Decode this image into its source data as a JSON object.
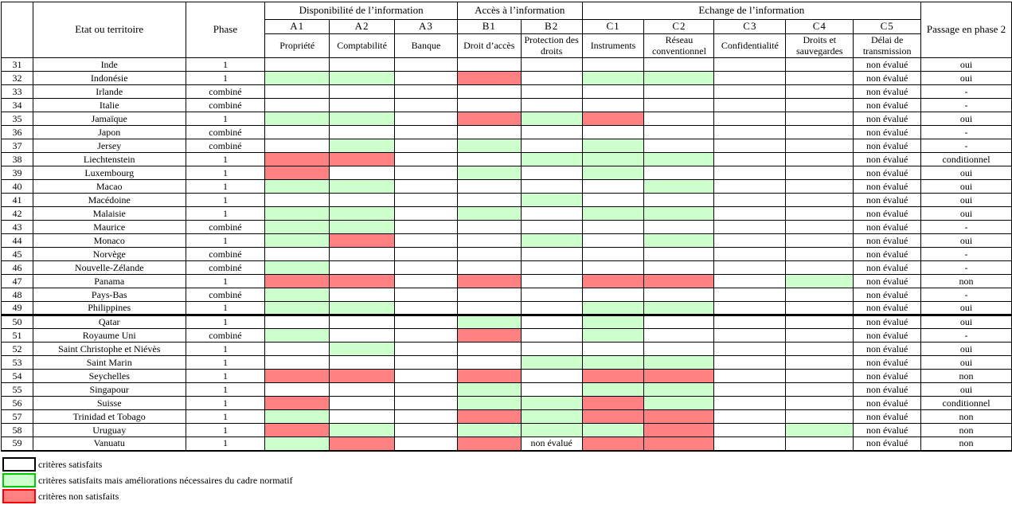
{
  "colors": {
    "criteria_ok_fill": "#ffffff",
    "criteria_improve_fill": "#ccffcc",
    "criteria_fail_fill": "#ff8080",
    "legend_green_border": "#00cc00",
    "legend_red_border": "#ff0000",
    "grid": "#000000"
  },
  "header": {
    "number": "",
    "territory": "Etat ou territoire",
    "phase": "Phase",
    "passage": "Passage en phase 2",
    "groups": [
      {
        "label": "Disponibilité de l’information",
        "cols": [
          "A1",
          "A2",
          "A3"
        ],
        "subs": [
          "Propriété",
          "Comptabilité",
          "Banque"
        ]
      },
      {
        "label": "Accès à l’information",
        "cols": [
          "B1",
          "B2"
        ],
        "subs": [
          "Droit d’accès",
          "Protection des droits"
        ]
      },
      {
        "label": "Echange de l’information",
        "cols": [
          "C1",
          "C2",
          "C3",
          "C4",
          "C5"
        ],
        "subs": [
          "Instruments",
          "Réseau conventionnel",
          "Confidentialité",
          "Droits et sauvegardes",
          "Délai de transmission"
        ]
      }
    ]
  },
  "cell_columns": [
    "A1",
    "A2",
    "A3",
    "B1",
    "B2",
    "C1",
    "C2",
    "C3",
    "C4"
  ],
  "not_evaluated_label": "non évalué",
  "rows": [
    {
      "num": "31",
      "territory": "Inde",
      "phase": "1",
      "cells": [
        "W",
        "W",
        "W",
        "W",
        "W",
        "W",
        "W",
        "W",
        "W"
      ],
      "c5": "non évalué",
      "passage": "oui",
      "thick_bottom": false
    },
    {
      "num": "32",
      "territory": "Indonésie",
      "phase": "1",
      "cells": [
        "G",
        "G",
        "W",
        "R",
        "W",
        "G",
        "G",
        "W",
        "W"
      ],
      "c5": "non évalué",
      "passage": "oui",
      "thick_bottom": false
    },
    {
      "num": "33",
      "territory": "Irlande",
      "phase": "combiné",
      "cells": [
        "W",
        "W",
        "W",
        "W",
        "W",
        "W",
        "W",
        "W",
        "W"
      ],
      "c5": "non évalué",
      "passage": "-",
      "thick_bottom": false
    },
    {
      "num": "34",
      "territory": "Italie",
      "phase": "combiné",
      "cells": [
        "W",
        "W",
        "W",
        "W",
        "W",
        "W",
        "W",
        "W",
        "W"
      ],
      "c5": "non évalué",
      "passage": "-",
      "thick_bottom": false
    },
    {
      "num": "35",
      "territory": "Jamaïque",
      "phase": "1",
      "cells": [
        "G",
        "G",
        "W",
        "R",
        "G",
        "R",
        "W",
        "W",
        "W"
      ],
      "c5": "non évalué",
      "passage": "oui",
      "thick_bottom": false
    },
    {
      "num": "36",
      "territory": "Japon",
      "phase": "combiné",
      "cells": [
        "W",
        "W",
        "W",
        "W",
        "W",
        "W",
        "W",
        "W",
        "W"
      ],
      "c5": "non évalué",
      "passage": "-",
      "thick_bottom": false
    },
    {
      "num": "37",
      "territory": "Jersey",
      "phase": "combiné",
      "cells": [
        "W",
        "G",
        "W",
        "G",
        "W",
        "G",
        "W",
        "W",
        "W"
      ],
      "c5": "non évalué",
      "passage": "-",
      "thick_bottom": false
    },
    {
      "num": "38",
      "territory": "Liechtenstein",
      "phase": "1",
      "cells": [
        "R",
        "R",
        "W",
        "W",
        "G",
        "G",
        "G",
        "W",
        "W"
      ],
      "c5": "non évalué",
      "passage": "conditionnel",
      "thick_bottom": false
    },
    {
      "num": "39",
      "territory": "Luxembourg",
      "phase": "1",
      "cells": [
        "R",
        "W",
        "W",
        "G",
        "W",
        "G",
        "W",
        "W",
        "W"
      ],
      "c5": "non évalué",
      "passage": "oui",
      "thick_bottom": false
    },
    {
      "num": "40",
      "territory": "Macao",
      "phase": "1",
      "cells": [
        "G",
        "G",
        "W",
        "W",
        "W",
        "W",
        "G",
        "W",
        "W"
      ],
      "c5": "non évalué",
      "passage": "oui",
      "thick_bottom": false
    },
    {
      "num": "41",
      "territory": "Macédoine",
      "phase": "1",
      "cells": [
        "W",
        "W",
        "W",
        "W",
        "G",
        "W",
        "W",
        "W",
        "W"
      ],
      "c5": "non évalué",
      "passage": "oui",
      "thick_bottom": false
    },
    {
      "num": "42",
      "territory": "Malaisie",
      "phase": "1",
      "cells": [
        "G",
        "G",
        "W",
        "G",
        "W",
        "G",
        "G",
        "W",
        "W"
      ],
      "c5": "non évalué",
      "passage": "oui",
      "thick_bottom": false
    },
    {
      "num": "43",
      "territory": "Maurice",
      "phase": "combiné",
      "cells": [
        "G",
        "G",
        "W",
        "W",
        "W",
        "W",
        "W",
        "W",
        "W"
      ],
      "c5": "non évalué",
      "passage": "-",
      "thick_bottom": false
    },
    {
      "num": "44",
      "territory": "Monaco",
      "phase": "1",
      "cells": [
        "G",
        "R",
        "W",
        "W",
        "G",
        "W",
        "G",
        "W",
        "W"
      ],
      "c5": "non évalué",
      "passage": "oui",
      "thick_bottom": false
    },
    {
      "num": "45",
      "territory": "Norvège",
      "phase": "combiné",
      "cells": [
        "W",
        "W",
        "W",
        "W",
        "W",
        "W",
        "W",
        "W",
        "W"
      ],
      "c5": "non évalué",
      "passage": "-",
      "thick_bottom": false
    },
    {
      "num": "46",
      "territory": "Nouvelle-Zélande",
      "phase": "combiné",
      "cells": [
        "G",
        "W",
        "W",
        "W",
        "W",
        "W",
        "W",
        "W",
        "W"
      ],
      "c5": "non évalué",
      "passage": "-",
      "thick_bottom": false
    },
    {
      "num": "47",
      "territory": "Panama",
      "phase": "1",
      "cells": [
        "R",
        "R",
        "W",
        "R",
        "W",
        "R",
        "R",
        "W",
        "G"
      ],
      "c5": "non évalué",
      "passage": "non",
      "thick_bottom": false
    },
    {
      "num": "48",
      "territory": "Pays-Bas",
      "phase": "combiné",
      "cells": [
        "G",
        "W",
        "W",
        "W",
        "W",
        "W",
        "W",
        "W",
        "W"
      ],
      "c5": "non évalué",
      "passage": "-",
      "thick_bottom": false
    },
    {
      "num": "49",
      "territory": "Philippines",
      "phase": "1",
      "cells": [
        "G",
        "G",
        "W",
        "W",
        "W",
        "G",
        "G",
        "W",
        "W"
      ],
      "c5": "non évalué",
      "passage": "oui",
      "thick_bottom": true
    },
    {
      "num": "50",
      "territory": "Qatar",
      "phase": "1",
      "cells": [
        "W",
        "W",
        "W",
        "G",
        "W",
        "G",
        "W",
        "W",
        "W"
      ],
      "c5": "non évalué",
      "passage": "oui",
      "thick_bottom": false
    },
    {
      "num": "51",
      "territory": "Royaume Uni",
      "phase": "combiné",
      "cells": [
        "G",
        "W",
        "W",
        "R",
        "W",
        "G",
        "W",
        "W",
        "W"
      ],
      "c5": "non évalué",
      "passage": "-",
      "thick_bottom": false
    },
    {
      "num": "52",
      "territory": "Saint Christophe et Niévès",
      "phase": "1",
      "cells": [
        "W",
        "G",
        "W",
        "W",
        "W",
        "W",
        "W",
        "W",
        "W"
      ],
      "c5": "non évalué",
      "passage": "oui",
      "thick_bottom": false
    },
    {
      "num": "53",
      "territory": "Saint Marin",
      "phase": "1",
      "cells": [
        "W",
        "W",
        "W",
        "W",
        "G",
        "G",
        "G",
        "W",
        "W"
      ],
      "c5": "non évalué",
      "passage": "oui",
      "thick_bottom": false
    },
    {
      "num": "54",
      "territory": "Seychelles",
      "phase": "1",
      "cells": [
        "R",
        "R",
        "W",
        "R",
        "W",
        "R",
        "R",
        "W",
        "W"
      ],
      "c5": "non évalué",
      "passage": "non",
      "thick_bottom": false
    },
    {
      "num": "55",
      "territory": "Singapour",
      "phase": "1",
      "cells": [
        "W",
        "W",
        "W",
        "G",
        "W",
        "G",
        "G",
        "W",
        "W"
      ],
      "c5": "non évalué",
      "passage": "oui",
      "thick_bottom": false
    },
    {
      "num": "56",
      "territory": "Suisse",
      "phase": "1",
      "cells": [
        "R",
        "W",
        "W",
        "G",
        "G",
        "R",
        "G",
        "W",
        "W"
      ],
      "c5": "non évalué",
      "passage": "conditionnel",
      "thick_bottom": false
    },
    {
      "num": "57",
      "territory": "Trinidad et Tobago",
      "phase": "1",
      "cells": [
        "G",
        "W",
        "W",
        "R",
        "G",
        "R",
        "R",
        "W",
        "W"
      ],
      "c5": "non évalué",
      "passage": "non",
      "thick_bottom": false
    },
    {
      "num": "58",
      "territory": "Uruguay",
      "phase": "1",
      "cells": [
        "R",
        "G",
        "W",
        "G",
        "G",
        "G",
        "R",
        "W",
        "G"
      ],
      "c5": "non évalué",
      "passage": "non",
      "thick_bottom": false
    },
    {
      "num": "59",
      "territory": "Vanuatu",
      "phase": "1",
      "cells": [
        "G",
        "R",
        "W",
        "R",
        "N",
        "R",
        "R",
        "W",
        "W"
      ],
      "c5": "non évalué",
      "passage": "non",
      "thick_bottom": false
    }
  ],
  "legend": [
    {
      "swatch": "white",
      "label": "critères satisfaits"
    },
    {
      "swatch": "green",
      "label": "critères satisfaits mais améliorations nécessaires du cadre normatif"
    },
    {
      "swatch": "red",
      "label": "critères non satisfaits"
    }
  ]
}
